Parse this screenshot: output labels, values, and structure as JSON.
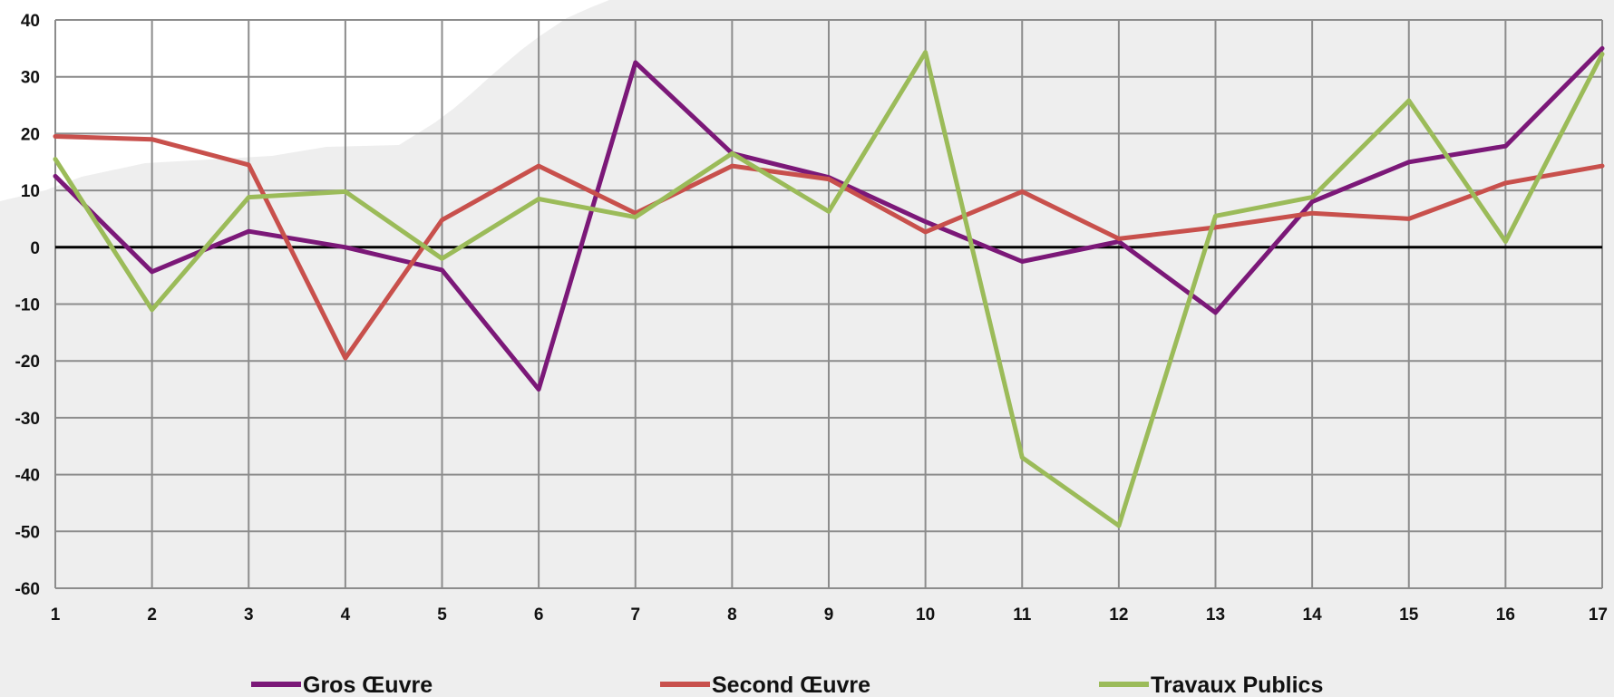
{
  "chart_data": {
    "type": "line",
    "title": "",
    "xlabel": "",
    "ylabel": "",
    "categories": [
      "1",
      "2",
      "3",
      "4",
      "5",
      "6",
      "7",
      "8",
      "9",
      "10",
      "11",
      "12",
      "13",
      "14",
      "15",
      "16",
      "17"
    ],
    "ylim": [
      -60,
      40
    ],
    "yticks": [
      40,
      30,
      20,
      10,
      0,
      -10,
      -20,
      -30,
      -40,
      -50,
      -60
    ],
    "ytick_labels": [
      "40",
      "30",
      "20",
      "10",
      "0",
      "-10",
      "-20",
      "-30",
      "-40",
      "-50",
      "-60"
    ],
    "grid": true,
    "legend_position": "bottom",
    "series": [
      {
        "name": "Gros Œuvre",
        "color": "#7b1878",
        "values": [
          12.5,
          -4.3,
          2.8,
          0.0,
          -4.0,
          -25.0,
          32.5,
          16.5,
          12.3,
          4.5,
          -2.5,
          1.0,
          -11.5,
          8.0,
          15.0,
          17.8,
          35.0
        ]
      },
      {
        "name": "Second Œuvre",
        "color": "#c8504c",
        "values": [
          19.5,
          19.0,
          14.5,
          -19.5,
          4.8,
          14.3,
          6.0,
          14.3,
          12.0,
          2.7,
          9.8,
          1.5,
          3.5,
          6.0,
          5.0,
          11.3,
          14.3
        ]
      },
      {
        "name": "Travaux Publics",
        "color": "#9bbb59",
        "values": [
          15.5,
          -11.0,
          8.8,
          9.8,
          -2.0,
          8.5,
          5.3,
          16.5,
          6.3,
          34.3,
          -37.0,
          -49.0,
          5.5,
          8.8,
          25.8,
          1.0,
          34.0
        ]
      }
    ],
    "zero_line_color": "#000000",
    "grid_color": "#8c8c8c"
  }
}
